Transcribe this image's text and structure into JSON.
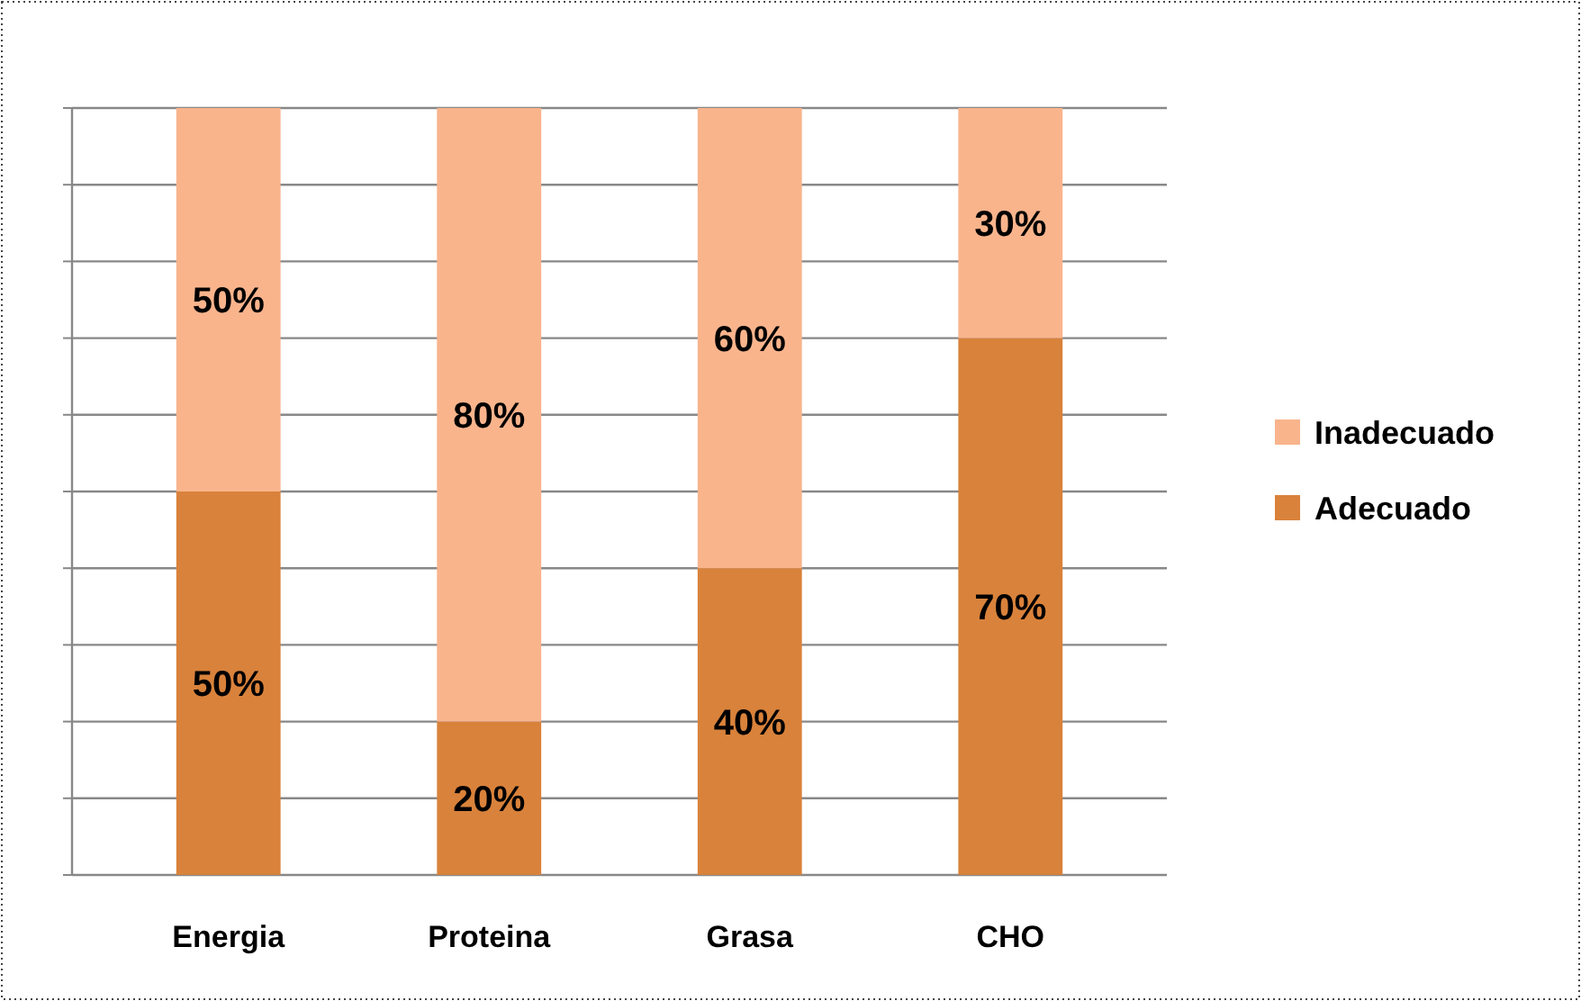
{
  "chart_data": {
    "type": "bar",
    "stacked": true,
    "categories": [
      "Energia",
      "Proteina",
      "Grasa",
      "CHO"
    ],
    "series": [
      {
        "name": "Adecuado",
        "color": "#d9823b",
        "values": [
          50,
          20,
          40,
          70
        ],
        "value_labels": [
          "50%",
          "20%",
          "40%",
          "70%"
        ]
      },
      {
        "name": "Inadecuado",
        "color": "#f9b48c",
        "values": [
          50,
          80,
          60,
          30
        ],
        "value_labels": [
          "50%",
          "80%",
          "60%",
          "30%"
        ]
      }
    ],
    "ylim": [
      0,
      100
    ],
    "yticks": [
      {
        "value": 0,
        "label": null
      },
      {
        "value": 10,
        "label": null
      },
      {
        "value": 20,
        "label": null
      },
      {
        "value": 30,
        "label": null
      },
      {
        "value": 40,
        "label": null
      },
      {
        "value": 50,
        "label": null
      },
      {
        "value": 60,
        "label": null
      },
      {
        "value": 70,
        "label": null
      },
      {
        "value": 80,
        "label": null
      },
      {
        "value": 90,
        "label": null
      },
      {
        "value": 100,
        "label": null
      }
    ],
    "grid": true,
    "tick_labels": "x",
    "legend": "right"
  }
}
